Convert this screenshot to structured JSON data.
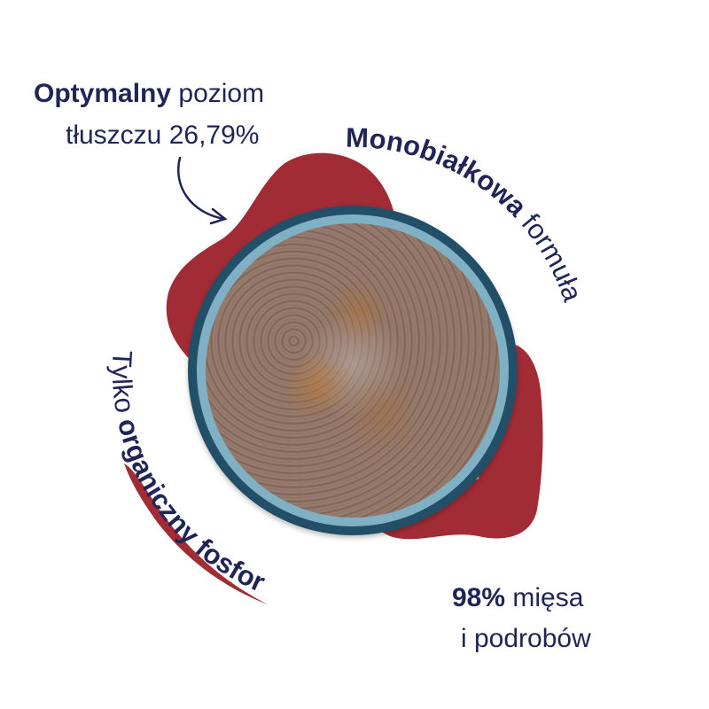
{
  "colors": {
    "navy": "#1f2557",
    "red_blob": "#a22c36",
    "bowl": "#1d4861"
  },
  "top_left": {
    "bold": "Optymalny",
    "regular": " poziom",
    "line2": "tłuszczu 26,79%"
  },
  "top_right": {
    "bold": "Monobiałkowa",
    "regular": " formuła"
  },
  "bottom_left": {
    "regular": "Tylko ",
    "bold": "organiczny fosfor"
  },
  "bottom_right": {
    "bold": "98%",
    "regular": " mięsa",
    "line2": "i podrobów"
  },
  "icons": {
    "arrow": "curved-arrow-icon",
    "brush_stroke": "red-brush-underline"
  }
}
